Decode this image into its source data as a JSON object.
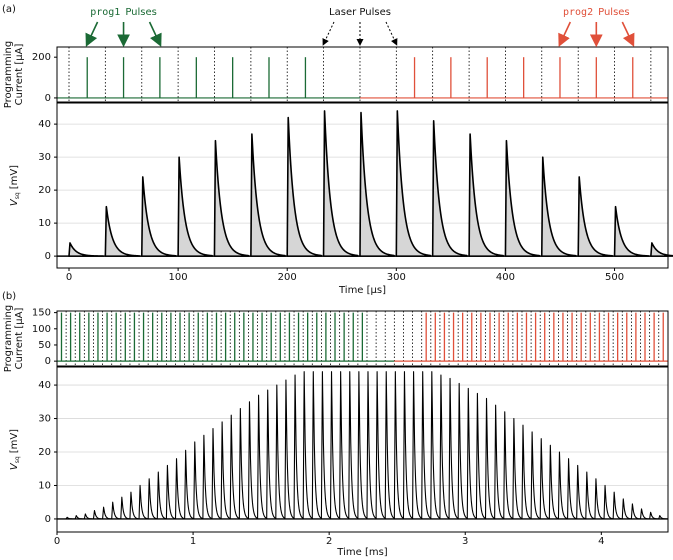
{
  "chart_data": [
    {
      "type": "pulse-train",
      "panel": "(a)",
      "x": [
        0,
        33.3,
        66.7,
        100,
        133.3,
        166.7,
        200,
        233.3,
        266.7,
        300,
        333.3,
        366.7,
        400,
        433.3,
        466.7,
        500,
        533.3
      ],
      "values": [
        4,
        15,
        24,
        30,
        35,
        37,
        42,
        44,
        43.5,
        44,
        41,
        37,
        35,
        30,
        24,
        15,
        4
      ],
      "xlim": [
        -11,
        549
      ],
      "xticks": [
        0,
        100,
        200,
        300,
        400,
        500
      ],
      "xlabel": "Time [µs]",
      "ylim": [
        -3.6,
        46.4
      ],
      "yticks": [
        0,
        10,
        20,
        30,
        40
      ],
      "ylabel_main": "V",
      "ylabel_sub": "sq",
      "ylabel_unit": "[mV]",
      "grid": true,
      "line_color": "#000000",
      "fill": "#d6d6d6",
      "current": {
        "ylim": [
          -20,
          250
        ],
        "yticks": [
          0,
          200
        ],
        "ylabel": [
          "Programming",
          "Current [µA]"
        ],
        "laser_color": "#000000",
        "series": [
          {
            "name": "prog1",
            "color": "#1b6a35",
            "amplitude": 200,
            "times": [
              16.7,
              50,
              83.3,
              116.7,
              150,
              183.3,
              216.7
            ]
          },
          {
            "name": "prog2",
            "color": "#e0503a",
            "amplitude": 200,
            "times": [
              316.7,
              350,
              383.3,
              416.7,
              450,
              483.3,
              516.7
            ]
          }
        ]
      },
      "annotations": {
        "pulses": "Pulses",
        "laser": "Laser Pulses"
      }
    },
    {
      "type": "pulse-train",
      "panel": "(b)",
      "x": [
        0.067,
        0.134,
        0.201,
        0.268,
        0.335,
        0.402,
        0.469,
        0.536,
        0.603,
        0.67,
        0.737,
        0.804,
        0.871,
        0.938,
        1.005,
        1.072,
        1.139,
        1.206,
        1.273,
        1.34,
        1.407,
        1.474,
        1.541,
        1.608,
        1.675,
        1.742,
        1.809,
        1.876,
        1.943,
        2.01,
        2.077,
        2.144,
        2.211,
        2.278,
        2.345,
        2.412,
        2.479,
        2.546,
        2.613,
        2.68,
        2.747,
        2.814,
        2.881,
        2.948,
        3.015,
        3.082,
        3.149,
        3.216,
        3.283,
        3.35,
        3.417,
        3.484,
        3.551,
        3.618,
        3.685,
        3.752,
        3.819,
        3.886,
        3.953,
        4.02,
        4.087,
        4.154,
        4.221,
        4.288,
        4.355,
        4.422
      ],
      "values": [
        0.5,
        1,
        1.5,
        2.5,
        3.5,
        5,
        6.5,
        8,
        10,
        12,
        14,
        16,
        18,
        20.5,
        23,
        25,
        27,
        29,
        31,
        33,
        35,
        37,
        38.5,
        40,
        41.5,
        43,
        44,
        44,
        44,
        44,
        44,
        44,
        44,
        44,
        44,
        44,
        44,
        44,
        44,
        44,
        44,
        43,
        42,
        40.5,
        39,
        37.5,
        36,
        34,
        32,
        30,
        28,
        26,
        24,
        22,
        20,
        18,
        16,
        14,
        12,
        10,
        8,
        6,
        4.5,
        3,
        2,
        1
      ],
      "xlim": [
        0,
        4.49
      ],
      "xticks": [
        0,
        1,
        2,
        3,
        4
      ],
      "xlabel": "Time [ms]",
      "ylim": [
        -3.9,
        45.4
      ],
      "yticks": [
        0,
        10,
        20,
        30,
        40
      ],
      "ylabel_main": "V",
      "ylabel_sub": "sq",
      "ylabel_unit": "[mV]",
      "grid": true,
      "line_color": "#000000",
      "current": {
        "ylim": [
          -15,
          155
        ],
        "yticks": [
          0,
          50,
          100,
          150
        ],
        "ylabel": [
          "Programming",
          "Current [µA]"
        ],
        "laser_color": "#000000",
        "series": [
          {
            "name": "prog1",
            "color": "#1b6a35",
            "amplitude": 150,
            "times": [
              0.033,
              0.1,
              0.167,
              0.234,
              0.301,
              0.368,
              0.435,
              0.502,
              0.569,
              0.636,
              0.703,
              0.77,
              0.837,
              0.904,
              0.971,
              1.038,
              1.105,
              1.172,
              1.239,
              1.306,
              1.373,
              1.44,
              1.507,
              1.574,
              1.641,
              1.708,
              1.775,
              1.842,
              1.909,
              1.976,
              2.043,
              2.11,
              2.177,
              2.244
            ]
          },
          {
            "name": "prog2",
            "color": "#e0503a",
            "amplitude": 150,
            "times": [
              2.713,
              2.78,
              2.847,
              2.914,
              2.981,
              3.048,
              3.115,
              3.182,
              3.249,
              3.316,
              3.383,
              3.45,
              3.517,
              3.584,
              3.651,
              3.718,
              3.785,
              3.852,
              3.919,
              3.986,
              4.053,
              4.12,
              4.187,
              4.254,
              4.321,
              4.388,
              4.455
            ]
          }
        ]
      }
    }
  ]
}
